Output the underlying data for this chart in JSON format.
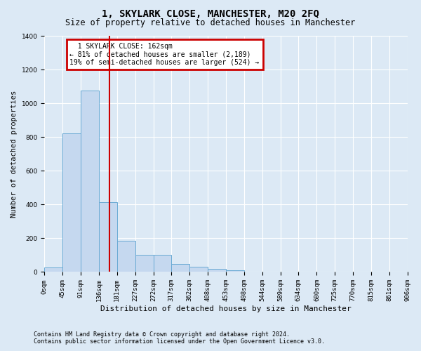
{
  "title": "1, SKYLARK CLOSE, MANCHESTER, M20 2FQ",
  "subtitle": "Size of property relative to detached houses in Manchester",
  "xlabel": "Distribution of detached houses by size in Manchester",
  "ylabel": "Number of detached properties",
  "footnote1": "Contains HM Land Registry data © Crown copyright and database right 2024.",
  "footnote2": "Contains public sector information licensed under the Open Government Licence v3.0.",
  "annotation_line1": "1 SKYLARK CLOSE: 162sqm",
  "annotation_line2": "← 81% of detached houses are smaller (2,189)",
  "annotation_line3": "19% of semi-detached houses are larger (524) →",
  "property_size": 162,
  "bar_edges": [
    0,
    45,
    91,
    136,
    181,
    227,
    272,
    317,
    362,
    408,
    453,
    498,
    544,
    589,
    634,
    680,
    725,
    770,
    815,
    861,
    906
  ],
  "bar_heights": [
    25,
    820,
    1075,
    415,
    185,
    100,
    100,
    47,
    30,
    20,
    10,
    0,
    0,
    0,
    0,
    0,
    0,
    0,
    0,
    0
  ],
  "bar_color": "#c5d8ef",
  "bar_edge_color": "#6aaad4",
  "vline_color": "#cc0000",
  "vline_x": 162,
  "ylim": [
    0,
    1400
  ],
  "yticks": [
    0,
    200,
    400,
    600,
    800,
    1000,
    1200,
    1400
  ],
  "background_color": "#dce9f5",
  "axes_bg_color": "#dce9f5",
  "grid_color": "#ffffff",
  "annotation_box_color": "#cc0000",
  "title_fontsize": 10,
  "subtitle_fontsize": 8.5,
  "xlabel_fontsize": 8,
  "ylabel_fontsize": 7.5,
  "tick_fontsize": 6.5,
  "footnote_fontsize": 6
}
